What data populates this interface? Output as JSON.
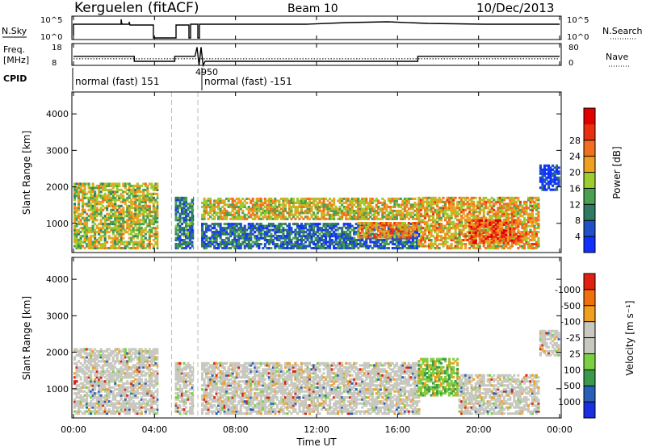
{
  "header": {
    "station": "Kerguelen (fitACF)",
    "beam": "Beam 10",
    "date": "10/Dec/2013"
  },
  "chart_data": [
    {
      "type": "line",
      "panel": "nsky-nsearch",
      "left_label": "N.Sky",
      "right_label": "N.Search",
      "yticks_left": [
        "10^5",
        "10^0"
      ],
      "yticks_right": [
        "10^5",
        "10^0"
      ]
    },
    {
      "type": "line",
      "panel": "freq-nave",
      "left_label": [
        "Freq.",
        "[MHz]"
      ],
      "right_label": "Nave",
      "yticks_left": [
        "18",
        "8"
      ],
      "yticks_right": [
        "80",
        "0"
      ],
      "annotation": "4950",
      "freq_series": {
        "x_hours": [
          0,
          3.0,
          3.0,
          5.0,
          5.0,
          6.0,
          6.1,
          6.2,
          6.3,
          6.4,
          6.5,
          17.0,
          17.0,
          24
        ],
        "mhz": [
          12.5,
          12.5,
          10,
          10,
          12.5,
          12.5,
          17,
          8,
          17,
          8,
          10,
          10,
          12.5,
          12.5
        ]
      },
      "nave_series": {
        "x_hours": [
          0,
          24
        ],
        "value": [
          26,
          26
        ]
      }
    },
    {
      "type": "table",
      "panel": "cpid",
      "label": "CPID",
      "entries": [
        {
          "text": "normal (fast) 151",
          "start_hour": 0
        },
        {
          "text": "normal (fast) -151",
          "start_hour": 6.3
        }
      ]
    },
    {
      "type": "heatmap",
      "panel": "power",
      "ylabel": "Slant Range [km]",
      "yticks": [
        "1000",
        "2000",
        "3000",
        "4000"
      ],
      "ylim": [
        200,
        4600
      ],
      "colorbar_label": "Power [dB]",
      "colorbar_ticks": [
        "4",
        "8",
        "12",
        "16",
        "20",
        "24",
        "28"
      ],
      "colorbar_colors": [
        "#1030ff",
        "#2050c8",
        "#2f7a60",
        "#4aa050",
        "#9ccc30",
        "#f0a020",
        "#f07020",
        "#e83010",
        "#e00000"
      ],
      "data_gaps_hours": [
        [
          4.2,
          5.0
        ],
        [
          5.95,
          6.3
        ]
      ],
      "echo_bands": [
        {
          "t0": 0.0,
          "t1": 4.2,
          "r0": 300,
          "r1": 2100,
          "level": 20
        },
        {
          "t0": 5.0,
          "t1": 5.95,
          "r0": 300,
          "r1": 1700,
          "level": 12
        },
        {
          "t0": 6.3,
          "t1": 17.0,
          "r0": 1100,
          "r1": 1700,
          "level": 22
        },
        {
          "t0": 6.3,
          "t1": 17.0,
          "r0": 300,
          "r1": 1000,
          "level": 10
        },
        {
          "t0": 14.0,
          "t1": 17.0,
          "r0": 600,
          "r1": 1000,
          "level": 26
        },
        {
          "t0": 17.0,
          "t1": 23.0,
          "r0": 300,
          "r1": 1700,
          "level": 24
        },
        {
          "t0": 19.5,
          "t1": 22.0,
          "r0": 450,
          "r1": 1100,
          "level": 30
        },
        {
          "t0": 23.0,
          "t1": 24.0,
          "r0": 1900,
          "r1": 2600,
          "level": 6
        }
      ]
    },
    {
      "type": "heatmap",
      "panel": "velocity",
      "ylabel": "Slant Range [km]",
      "yticks": [
        "1000",
        "2000",
        "3000",
        "4000"
      ],
      "ylim": [
        200,
        4600
      ],
      "colorbar_label": "Velocity [m s⁻¹]",
      "colorbar_ticks": [
        "1000",
        "500",
        "100",
        "25",
        "-25",
        "-100",
        "-500",
        "-1000"
      ],
      "colorbar_colors": [
        "#1a30e0",
        "#2a5fb8",
        "#3a9a4a",
        "#7ad040",
        "#c8c8c0",
        "#c8c8c0",
        "#f0a020",
        "#f07010",
        "#e02010"
      ],
      "data_gaps_hours": [
        [
          4.2,
          5.0
        ],
        [
          5.95,
          6.3
        ]
      ],
      "echo_bands": [
        {
          "t0": 0.0,
          "t1": 4.2,
          "r0": 300,
          "r1": 2100,
          "value": 0
        },
        {
          "t0": 5.0,
          "t1": 5.95,
          "r0": 300,
          "r1": 1700,
          "value": 0
        },
        {
          "t0": 6.3,
          "t1": 17.0,
          "r0": 300,
          "r1": 1700,
          "value": 0
        },
        {
          "t0": 17.0,
          "t1": 19.0,
          "r0": 800,
          "r1": 1800,
          "value": 150
        },
        {
          "t0": 19.0,
          "t1": 23.0,
          "r0": 300,
          "r1": 1400,
          "value": 0
        },
        {
          "t0": 23.0,
          "t1": 24.0,
          "r0": 1900,
          "r1": 2600,
          "value": 0
        }
      ],
      "xticks": [
        "00:00",
        "04:00",
        "08:00",
        "12:00",
        "16:00",
        "20:00",
        "00:00"
      ],
      "xlabel": "Time UT"
    }
  ]
}
